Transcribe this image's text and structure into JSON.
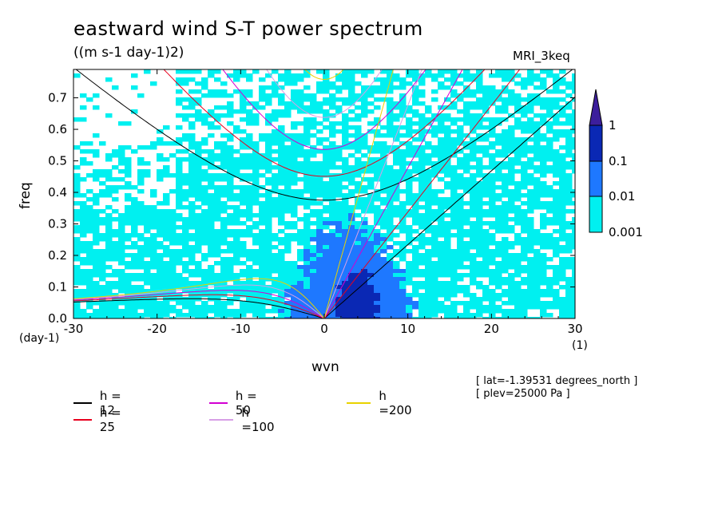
{
  "header": {
    "title": "eastward wind S-T power spectrum",
    "subtitle": "((m s-1 day-1)2)",
    "model": "MRI_3keq"
  },
  "axes": {
    "xlabel": "wvn",
    "ylabel": "freq",
    "xunit": "(1)",
    "yunit": "(day-1)"
  },
  "info": {
    "lat": "[ lat=-1.39531 degrees_north ]",
    "plev": "[ plev=25000 Pa ]"
  },
  "legend": [
    {
      "label": "h = 12",
      "color": "#000000"
    },
    {
      "label": "h = 25",
      "color": "#e8001e"
    },
    {
      "label": "h = 50",
      "color": "#d200d2"
    },
    {
      "label": "h =100",
      "color": "#d79ee6"
    },
    {
      "label": "h =200",
      "color": "#e8d200"
    }
  ],
  "colorbar": {
    "labels": [
      "1",
      "0.1",
      "0.01",
      "0.001"
    ],
    "colors": [
      "#3c1e9c",
      "#0a28b4",
      "#1e78ff",
      "#00f0f0"
    ]
  },
  "chart_data": {
    "type": "heatmap",
    "title": "eastward wind S-T power spectrum",
    "subtitle": "((m s-1 day-1)2)",
    "xlabel": "wvn",
    "ylabel": "freq",
    "xlim": [
      -30,
      30
    ],
    "ylim": [
      0,
      0.79
    ],
    "x_ticks": [
      -30,
      -20,
      -10,
      0,
      10,
      20,
      30
    ],
    "y_ticks": [
      0.0,
      0.1,
      0.2,
      0.3,
      0.4,
      0.5,
      0.6,
      0.7
    ],
    "x_tick_labels": [
      "-30",
      "-20",
      "-10",
      "0",
      "10",
      "20",
      "30"
    ],
    "y_tick_labels": [
      "0.0",
      "0.1",
      "0.2",
      "0.3",
      "0.4",
      "0.5",
      "0.6",
      "0.7"
    ],
    "contour_levels": [
      0.001,
      0.01,
      0.1,
      1
    ],
    "dispersion_curves": {
      "equivalent_depths": [
        12,
        25,
        50,
        100,
        200
      ],
      "labels": [
        "h = 12",
        "h = 25",
        "h = 50",
        "h =100",
        "h =200"
      ],
      "colors": [
        "#000000",
        "#e8001e",
        "#d200d2",
        "#d79ee6",
        "#e8d200"
      ]
    },
    "grid": false,
    "legend": "below"
  }
}
